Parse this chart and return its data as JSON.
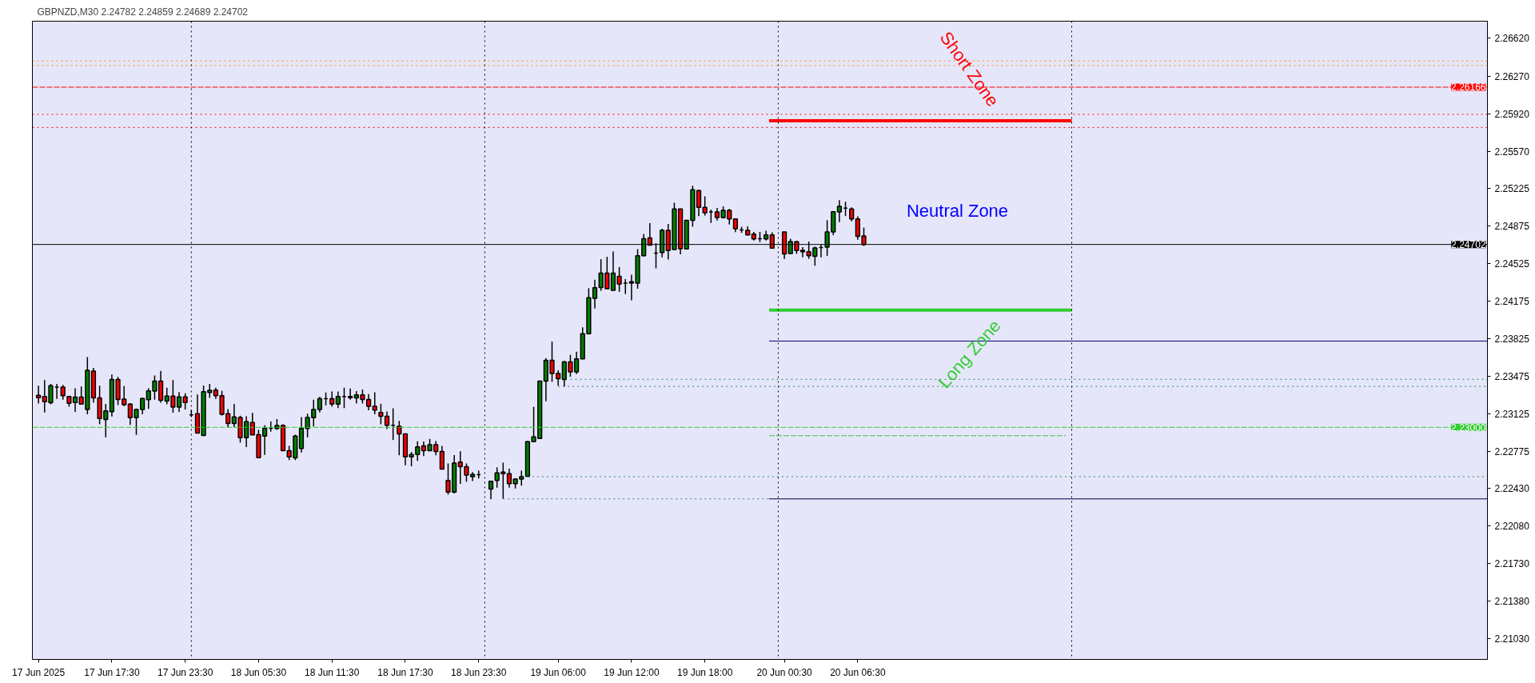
{
  "chart_data": {
    "type": "candlestick",
    "title": "GBPNZD,M30  2.24782 2.24859 2.24689 2.24702",
    "x": [
      "2025-06-17T11:30",
      "2025-06-17T12:00",
      "2025-06-17T12:30",
      "2025-06-17T13:00",
      "2025-06-17T13:30",
      "2025-06-17T14:00",
      "2025-06-17T14:30",
      "2025-06-17T15:00",
      "2025-06-17T15:30",
      "2025-06-17T16:00",
      "2025-06-17T16:30",
      "2025-06-17T17:00",
      "2025-06-17T17:30",
      "2025-06-17T18:00",
      "2025-06-17T18:30",
      "2025-06-17T19:00",
      "2025-06-17T19:30",
      "2025-06-17T20:00",
      "2025-06-17T20:30",
      "2025-06-17T21:00",
      "2025-06-17T21:30",
      "2025-06-17T22:00",
      "2025-06-17T22:30",
      "2025-06-17T23:00",
      "2025-06-17T23:30",
      "2025-06-18T00:00",
      "2025-06-18T00:30",
      "2025-06-18T01:00",
      "2025-06-18T01:30",
      "2025-06-18T02:00",
      "2025-06-18T02:30",
      "2025-06-18T03:00",
      "2025-06-18T03:30",
      "2025-06-18T04:00",
      "2025-06-18T04:30",
      "2025-06-18T05:00",
      "2025-06-18T05:30",
      "2025-06-18T06:00",
      "2025-06-18T06:30",
      "2025-06-18T07:00",
      "2025-06-18T07:30",
      "2025-06-18T08:00",
      "2025-06-18T08:30",
      "2025-06-18T09:00",
      "2025-06-18T09:30",
      "2025-06-18T10:00",
      "2025-06-18T10:30",
      "2025-06-18T11:00",
      "2025-06-18T11:30",
      "2025-06-18T12:00",
      "2025-06-18T12:30",
      "2025-06-18T13:00",
      "2025-06-18T13:30",
      "2025-06-18T14:00",
      "2025-06-18T14:30",
      "2025-06-18T15:00",
      "2025-06-18T15:30",
      "2025-06-18T16:00",
      "2025-06-18T16:30",
      "2025-06-18T17:00",
      "2025-06-18T17:30",
      "2025-06-18T18:00",
      "2025-06-18T18:30",
      "2025-06-18T19:00",
      "2025-06-18T19:30",
      "2025-06-18T20:00",
      "2025-06-18T20:30",
      "2025-06-18T21:00",
      "2025-06-18T21:30",
      "2025-06-18T22:00",
      "2025-06-18T22:30",
      "2025-06-18T23:00",
      "2025-06-18T23:30",
      "2025-06-19T00:30",
      "2025-06-19T01:00",
      "2025-06-19T01:30",
      "2025-06-19T02:00",
      "2025-06-19T02:30",
      "2025-06-19T03:00",
      "2025-06-19T03:30",
      "2025-06-19T04:00",
      "2025-06-19T04:30",
      "2025-06-19T05:00",
      "2025-06-19T05:30",
      "2025-06-19T06:00",
      "2025-06-19T06:30",
      "2025-06-19T07:00",
      "2025-06-19T07:30",
      "2025-06-19T08:00",
      "2025-06-19T08:30",
      "2025-06-19T09:00",
      "2025-06-19T09:30",
      "2025-06-19T10:00",
      "2025-06-19T10:30",
      "2025-06-19T11:00",
      "2025-06-19T11:30",
      "2025-06-19T12:00",
      "2025-06-19T12:30",
      "2025-06-19T13:00",
      "2025-06-19T13:30",
      "2025-06-19T14:00",
      "2025-06-19T14:30",
      "2025-06-19T15:00",
      "2025-06-19T15:30",
      "2025-06-19T16:00",
      "2025-06-19T16:30",
      "2025-06-19T17:00",
      "2025-06-19T17:30",
      "2025-06-19T18:00",
      "2025-06-19T18:30",
      "2025-06-19T19:00",
      "2025-06-19T19:30",
      "2025-06-19T20:00",
      "2025-06-19T20:30",
      "2025-06-19T21:00",
      "2025-06-19T21:30",
      "2025-06-19T22:00",
      "2025-06-19T22:30",
      "2025-06-19T23:00",
      "2025-06-19T23:30",
      "2025-06-20T00:30",
      "2025-06-20T01:00",
      "2025-06-20T01:30",
      "2025-06-20T02:00",
      "2025-06-20T02:30",
      "2025-06-20T03:00",
      "2025-06-20T03:30",
      "2025-06-20T04:00",
      "2025-06-20T04:30",
      "2025-06-20T05:00",
      "2025-06-20T05:30",
      "2025-06-20T06:00",
      "2025-06-20T06:30",
      "2025-06-20T07:00"
    ],
    "ohlc": [
      [
        2.23298,
        2.23388,
        2.23222,
        2.23276
      ],
      [
        2.23288,
        2.2344,
        2.23139,
        2.23238
      ],
      [
        2.23229,
        2.23404,
        2.23215,
        2.23388
      ],
      [
        2.23374,
        2.23404,
        2.23264,
        2.23374
      ],
      [
        2.23374,
        2.23395,
        2.23257,
        2.23295
      ],
      [
        2.23288,
        2.2329,
        2.23193,
        2.23224
      ],
      [
        2.23231,
        2.23364,
        2.23143,
        2.23281
      ],
      [
        2.23281,
        2.23381,
        2.23215,
        2.23217
      ],
      [
        2.23167,
        2.23654,
        2.23122,
        2.2353
      ],
      [
        2.23523,
        2.23554,
        2.23229,
        2.23274
      ],
      [
        2.23274,
        2.23388,
        2.23029,
        2.23082
      ],
      [
        2.23074,
        2.23219,
        2.22908,
        2.23153
      ],
      [
        2.23146,
        2.23492,
        2.23101,
        2.23445
      ],
      [
        2.23445,
        2.23469,
        2.23207,
        2.2326
      ],
      [
        2.23262,
        2.23383,
        2.23198,
        2.2321
      ],
      [
        2.23217,
        2.23226,
        2.23022,
        2.23089
      ],
      [
        2.23089,
        2.23174,
        2.2293,
        2.23167
      ],
      [
        2.23167,
        2.23274,
        2.23122,
        2.23269
      ],
      [
        2.23257,
        2.23364,
        2.23172,
        2.2334
      ],
      [
        2.23338,
        2.23483,
        2.23257,
        2.23431
      ],
      [
        2.23431,
        2.23526,
        2.23229,
        2.23252
      ],
      [
        2.23245,
        2.23369,
        2.23215,
        2.2329
      ],
      [
        2.2329,
        2.2344,
        2.23136,
        2.23188
      ],
      [
        2.23188,
        2.23328,
        2.23143,
        2.23283
      ],
      [
        2.23283,
        2.23317,
        2.23167,
        2.23231
      ],
      [
        2.23115,
        2.23162,
        2.23096,
        2.23115
      ],
      [
        2.23127,
        2.23305,
        2.22946,
        2.22946
      ],
      [
        2.22925,
        2.2339,
        2.22925,
        2.23331
      ],
      [
        2.23324,
        2.23404,
        2.23274,
        2.23345
      ],
      [
        2.23347,
        2.23369,
        2.23264,
        2.23295
      ],
      [
        2.23295,
        2.2334,
        2.2311,
        2.23122
      ],
      [
        2.23127,
        2.23169,
        2.23001,
        2.23036
      ],
      [
        2.23036,
        2.23219,
        2.23001,
        2.23098
      ],
      [
        2.23091,
        2.23108,
        2.22858,
        2.22904
      ],
      [
        2.22904,
        2.23103,
        2.22816,
        2.23053
      ],
      [
        2.23046,
        2.23134,
        2.2293,
        2.2293
      ],
      [
        2.22932,
        2.22977,
        2.22718,
        2.22718
      ],
      [
        2.22918,
        2.2302,
        2.22744,
        2.22991
      ],
      [
        2.22991,
        2.23055,
        2.2296,
        2.22991
      ],
      [
        2.22989,
        2.23077,
        2.22977,
        2.23017
      ],
      [
        2.23017,
        2.23029,
        2.22782,
        2.22782
      ],
      [
        2.22782,
        2.22828,
        2.22695,
        2.22725
      ],
      [
        2.22716,
        2.22932,
        2.22695,
        2.22918
      ],
      [
        2.22804,
        2.23096,
        2.22766,
        2.22989
      ],
      [
        2.22989,
        2.23127,
        2.22906,
        2.23091
      ],
      [
        2.23089,
        2.23257,
        2.23008,
        2.23167
      ],
      [
        2.23167,
        2.23286,
        2.23139,
        2.23267
      ],
      [
        2.23267,
        2.23324,
        2.23203,
        2.23267
      ],
      [
        2.23267,
        2.23333,
        2.23193,
        2.23217
      ],
      [
        2.23217,
        2.23333,
        2.23179,
        2.23288
      ],
      [
        2.23288,
        2.23369,
        2.23179,
        2.23288
      ],
      [
        2.23288,
        2.23362,
        2.23257,
        2.23276
      ],
      [
        2.23274,
        2.23338,
        2.23222,
        2.23302
      ],
      [
        2.23302,
        2.23352,
        2.23222,
        2.2326
      ],
      [
        2.2326,
        2.23309,
        2.23158,
        2.23196
      ],
      [
        2.23196,
        2.23326,
        2.23122,
        2.2316
      ],
      [
        2.23139,
        2.23219,
        2.23029,
        2.23103
      ],
      [
        2.23103,
        2.23148,
        2.22984,
        2.2302
      ],
      [
        2.2302,
        2.23177,
        2.22882,
        2.2302
      ],
      [
        2.2301,
        2.2306,
        2.2274,
        2.22939
      ],
      [
        2.22939,
        2.22941,
        2.22647,
        2.22725
      ],
      [
        2.22725,
        2.22771,
        2.22638,
        2.22747
      ],
      [
        2.22747,
        2.2287,
        2.22687,
        2.22818
      ],
      [
        2.22828,
        2.22868,
        2.22733,
        2.22782
      ],
      [
        2.22782,
        2.22892,
        2.22778,
        2.22839
      ],
      [
        2.22839,
        2.22873,
        2.2274,
        2.22775
      ],
      [
        2.22775,
        2.22828,
        2.22612,
        2.22612
      ],
      [
        2.22505,
        2.22664,
        2.22374,
        2.22398
      ],
      [
        2.22398,
        2.22742,
        2.22384,
        2.22668
      ],
      [
        2.22676,
        2.22778,
        2.22474,
        2.22633
      ],
      [
        2.22633,
        2.22664,
        2.22493,
        2.22555
      ],
      [
        2.2254,
        2.22583,
        2.225,
        2.22562
      ],
      [
        2.22559,
        2.22597,
        2.22524,
        2.22559
      ],
      [
        2.22426,
        2.22502,
        2.22331,
        2.22498
      ],
      [
        2.22505,
        2.22628,
        2.22438,
        2.22576
      ],
      [
        2.22583,
        2.22671,
        2.22336,
        2.22569
      ],
      [
        2.22569,
        2.22616,
        2.22438,
        2.22476
      ],
      [
        2.22476,
        2.22526,
        2.22431,
        2.22519
      ],
      [
        2.22519,
        2.22597,
        2.22457,
        2.2254
      ],
      [
        2.22545,
        2.22873,
        2.22545,
        2.22866
      ],
      [
        2.22866,
        2.23191,
        2.22863,
        2.22911
      ],
      [
        2.22896,
        2.23435,
        2.22896,
        2.23431
      ],
      [
        2.23431,
        2.23644,
        2.23243,
        2.23623
      ],
      [
        2.23623,
        2.23798,
        2.23423,
        2.23502
      ],
      [
        2.23502,
        2.2353,
        2.23388,
        2.23452
      ],
      [
        2.23445,
        2.23618,
        2.23381,
        2.23609
      ],
      [
        2.23609,
        2.23675,
        2.23471,
        2.23516
      ],
      [
        2.23516,
        2.23704,
        2.23495,
        2.23637
      ],
      [
        2.23637,
        2.23931,
        2.23637,
        2.23872
      ],
      [
        2.23872,
        2.24295,
        2.23865,
        2.24207
      ],
      [
        2.242,
        2.24373,
        2.24105,
        2.24299
      ],
      [
        2.24302,
        2.24565,
        2.24271,
        2.24435
      ],
      [
        2.24435,
        2.24587,
        2.2429,
        2.2429
      ],
      [
        2.24276,
        2.24636,
        2.24271,
        2.24435
      ],
      [
        2.24406,
        2.24492,
        2.24261,
        2.24333
      ],
      [
        2.24342,
        2.2438,
        2.2424,
        2.24342
      ],
      [
        2.24342,
        2.2442,
        2.24183,
        2.24356
      ],
      [
        2.24342,
        2.24658,
        2.2429,
        2.24598
      ],
      [
        2.24598,
        2.248,
        2.24591,
        2.24755
      ],
      [
        2.24762,
        2.249,
        2.24696,
        2.24696
      ],
      [
        2.24622,
        2.24715,
        2.2448,
        2.24622
      ],
      [
        2.24627,
        2.24848,
        2.24582,
        2.24834
      ],
      [
        2.24834,
        2.24893,
        2.24561,
        2.24646
      ],
      [
        2.24655,
        2.2509,
        2.24655,
        2.25033
      ],
      [
        2.25033,
        2.25033,
        2.2461,
        2.24663
      ],
      [
        2.2466,
        2.24926,
        2.2466,
        2.24926
      ],
      [
        2.24926,
        2.25249,
        2.24867,
        2.25211
      ],
      [
        2.25204,
        2.25211,
        2.24966,
        2.25047
      ],
      [
        2.25047,
        2.25149,
        2.24971,
        2.24997
      ],
      [
        2.25004,
        2.25026,
        2.24902,
        2.25004
      ],
      [
        2.25004,
        2.25042,
        2.24924,
        2.24952
      ],
      [
        2.24952,
        2.25057,
        2.24943,
        2.25019
      ],
      [
        2.25019,
        2.25033,
        2.24888,
        2.2494
      ],
      [
        2.2494,
        2.24943,
        2.24817,
        2.24848
      ],
      [
        2.24838,
        2.24867,
        2.2481,
        2.24838
      ],
      [
        2.24834,
        2.24871,
        2.24788,
        2.24791
      ],
      [
        2.24798,
        2.24819,
        2.24738,
        2.24753
      ],
      [
        2.24755,
        2.24819,
        2.24724,
        2.24755
      ],
      [
        2.24753,
        2.24829,
        2.24738,
        2.24791
      ],
      [
        2.24791,
        2.24815,
        2.24667,
        2.24667
      ],
      [
        2.24819,
        2.24819,
        2.24568,
        2.24613
      ],
      [
        2.24617,
        2.24755,
        2.24617,
        2.24729
      ],
      [
        2.24727,
        2.24736,
        2.24615,
        2.24646
      ],
      [
        2.24648,
        2.24677,
        2.24582,
        2.24634
      ],
      [
        2.24634,
        2.24729,
        2.24568,
        2.24598
      ],
      [
        2.24591,
        2.24682,
        2.24504,
        2.2467
      ],
      [
        2.24674,
        2.24701,
        2.24582,
        2.24674
      ],
      [
        2.24677,
        2.24928,
        2.24596,
        2.24819
      ],
      [
        2.24819,
        2.25014,
        2.24788,
        2.25007
      ],
      [
        2.25004,
        2.25114,
        2.24909,
        2.25057
      ],
      [
        2.2504,
        2.25099,
        2.24966,
        2.2504
      ],
      [
        2.25033,
        2.25047,
        2.24917,
        2.2494
      ],
      [
        2.2494,
        2.24964,
        2.24746,
        2.24777
      ],
      [
        2.24782,
        2.24859,
        2.24689,
        2.24702
      ]
    ],
    "series": [
      {
        "type": "line",
        "color": "#ff0000",
        "line_style": "solid",
        "x": [
          "2025-06-19T23:15",
          "2025-06-21T00:00"
        ],
        "values": [
          2.25853,
          2.25853
        ]
      },
      {
        "type": "line",
        "color": "#32cd32",
        "line_style": "solid",
        "x": [
          "2025-06-19T23:15",
          "2025-06-21T00:00"
        ],
        "values": [
          2.24091,
          2.24091
        ]
      },
      {
        "type": "line",
        "color": "#000080",
        "line_style": "solid",
        "x": [
          "2025-06-19T23:15",
          "2025-06-22T10:00"
        ],
        "values": [
          2.23803,
          2.23803
        ]
      },
      {
        "type": "line",
        "color": "#2e8b57",
        "line_style": "dotted",
        "x": [
          "2025-06-19T07:00",
          "2025-06-22T10:00"
        ],
        "values": [
          2.23447,
          2.23447
        ]
      },
      {
        "type": "line",
        "color": "#2e8b57",
        "line_style": "dotted",
        "x": [
          "2025-06-19T06:00",
          "2025-06-22T10:00"
        ],
        "values": [
          2.23381,
          2.23381
        ]
      },
      {
        "type": "line",
        "color": "#32cd32",
        "line_style": "dashed",
        "x": [
          "2025-06-19T23:15",
          "2025-06-20T23:30"
        ],
        "values": [
          2.22922,
          2.22922
        ]
      },
      {
        "type": "line",
        "color": "#2e8b57",
        "line_style": "dotted",
        "x": [
          "2025-06-19T03:30",
          "2025-06-22T10:00"
        ],
        "values": [
          2.22541,
          2.22541
        ]
      },
      {
        "type": "line",
        "color": "#2e8b57",
        "line_style": "dotted",
        "x": [
          "2025-06-19T01:30",
          "2025-06-19T23:15"
        ],
        "values": [
          2.22334,
          2.22334
        ]
      },
      {
        "type": "line",
        "color": "#000040",
        "line_style": "solid",
        "x": [
          "2025-06-19T23:15",
          "2025-06-22T10:00"
        ],
        "values": [
          2.22334,
          2.22334
        ]
      }
    ],
    "ref_lines": [
      {
        "axis": "y",
        "value": 2.2641,
        "color": "#ff8c00",
        "line_style": "dotted"
      },
      {
        "axis": "y",
        "value": 2.26367,
        "color": "#ff8c00",
        "line_style": "dotted"
      },
      {
        "axis": "y",
        "value": 2.26166,
        "label": "2.26166",
        "color": "#ff0000",
        "line_style": "dashed"
      },
      {
        "axis": "y",
        "value": 2.25913,
        "color": "#ff0000",
        "line_style": "dotted"
      },
      {
        "axis": "y",
        "value": 2.25791,
        "color": "#ff0000",
        "line_style": "dotted"
      },
      {
        "axis": "y",
        "value": 2.24702,
        "label": "2.24702",
        "color": "#000000",
        "line_style": "solid"
      },
      {
        "axis": "y",
        "value": 2.23,
        "label": "2.23000",
        "color": "#32cd32",
        "line_style": "dashed"
      },
      {
        "axis": "x",
        "value": "2025-06-18T00:00",
        "color": "#000000",
        "line_style": "dotted"
      },
      {
        "axis": "x",
        "value": "2025-06-19T00:00",
        "color": "#000000",
        "line_style": "dotted"
      },
      {
        "axis": "x",
        "value": "2025-06-20T00:00",
        "color": "#000000",
        "line_style": "dotted"
      },
      {
        "axis": "x",
        "value": "2025-06-21T00:00",
        "color": "#000000",
        "line_style": "dotted"
      }
    ],
    "annotations": [
      "Short Zone",
      "Neutral Zone",
      "Long Zone"
    ],
    "xlim": [
      "2025-06-17T11:00",
      "2025-06-22T10:00"
    ],
    "xticks": [
      {
        "value": "2025-06-17T11:30",
        "label": "17 Jun 2025"
      },
      {
        "value": "2025-06-17T17:30",
        "label": "17 Jun 17:30"
      },
      {
        "value": "2025-06-17T23:30",
        "label": "17 Jun 23:30"
      },
      {
        "value": "2025-06-18T05:30",
        "label": "18 Jun 05:30"
      },
      {
        "value": "2025-06-18T11:30",
        "label": "18 Jun 11:30"
      },
      {
        "value": "2025-06-18T17:30",
        "label": "18 Jun 17:30"
      },
      {
        "value": "2025-06-18T23:30",
        "label": "18 Jun 23:30"
      },
      {
        "value": "2025-06-19T06:00",
        "label": "19 Jun 06:00"
      },
      {
        "value": "2025-06-19T12:00",
        "label": "19 Jun 12:00"
      },
      {
        "value": "2025-06-19T18:00",
        "label": "19 Jun 18:00"
      },
      {
        "value": "2025-06-20T00:30",
        "label": "20 Jun 00:30"
      },
      {
        "value": "2025-06-20T06:30",
        "label": "20 Jun 06:30"
      }
    ],
    "ylim": [
      2.2084,
      2.2678
    ],
    "yticks": [
      {
        "value": 2.2662,
        "label": "2.26620"
      },
      {
        "value": 2.2627,
        "label": "2.26270"
      },
      {
        "value": 2.2592,
        "label": "2.25920"
      },
      {
        "value": 2.2557,
        "label": "2.25570"
      },
      {
        "value": 2.25225,
        "label": "2.25225"
      },
      {
        "value": 2.24875,
        "label": "2.24875"
      },
      {
        "value": 2.24525,
        "label": "2.24525"
      },
      {
        "value": 2.24175,
        "label": "2.24175"
      },
      {
        "value": 2.23825,
        "label": "2.23825"
      },
      {
        "value": 2.23475,
        "label": "2.23475"
      },
      {
        "value": 2.23125,
        "label": "2.23125"
      },
      {
        "value": 2.22775,
        "label": "2.22775"
      },
      {
        "value": 2.2243,
        "label": "2.22430"
      },
      {
        "value": 2.2208,
        "label": "2.22080"
      },
      {
        "value": 2.2173,
        "label": "2.21730"
      },
      {
        "value": 2.2138,
        "label": "2.21380"
      },
      {
        "value": 2.2103,
        "label": "2.21030"
      }
    ],
    "grid": false
  }
}
